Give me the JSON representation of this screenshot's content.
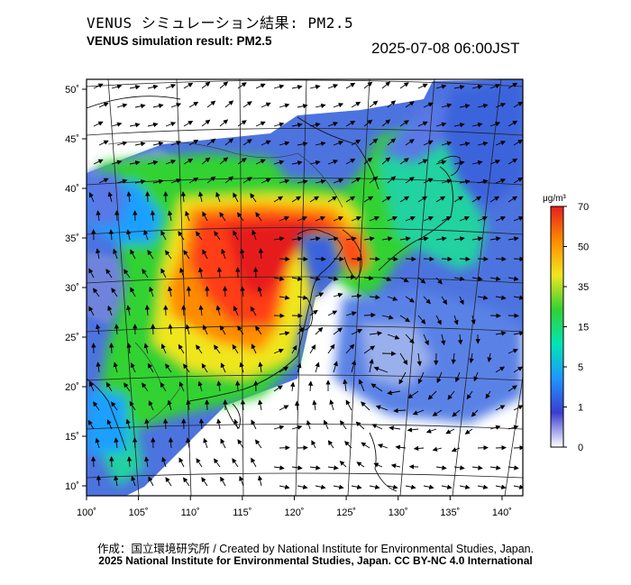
{
  "title_jp": "VENUS シミュレーション結果: PM2.5",
  "title_en": "VENUS simulation result: PM2.5",
  "timestamp": "2025-07-08 06:00JST",
  "map": {
    "lon_ticks": [
      100,
      105,
      110,
      115,
      120,
      125,
      130,
      135,
      140
    ],
    "lat_ticks": [
      10,
      15,
      20,
      25,
      30,
      35,
      40,
      45,
      50
    ],
    "lon_labels": [
      "100˚",
      "105˚",
      "110˚",
      "115˚",
      "120˚",
      "125˚",
      "130˚",
      "135˚",
      "140˚"
    ],
    "lat_labels": [
      "10˚",
      "15˚",
      "20˚",
      "25˚",
      "30˚",
      "35˚",
      "40˚",
      "45˚",
      "50˚"
    ],
    "lon_range": [
      100,
      142
    ],
    "lat_range": [
      9,
      51
    ]
  },
  "colorbar": {
    "unit_label": "μg/m³",
    "labels": [
      "0",
      "1",
      "5",
      "15",
      "35",
      "50",
      "70"
    ],
    "colors": [
      "#ffffff",
      "#3c3cd2",
      "#1e96ff",
      "#00e6b4",
      "#32d232",
      "#f0e61e",
      "#ff8c00",
      "#e61e1e"
    ]
  },
  "credits": {
    "line1": "作成：国立環境研究所 / Created by National Institute for Environmental Studies, Japan.",
    "line2": "2025 National Institute for Environmental Studies, Japan. CC BY-NC 4.0 International"
  }
}
